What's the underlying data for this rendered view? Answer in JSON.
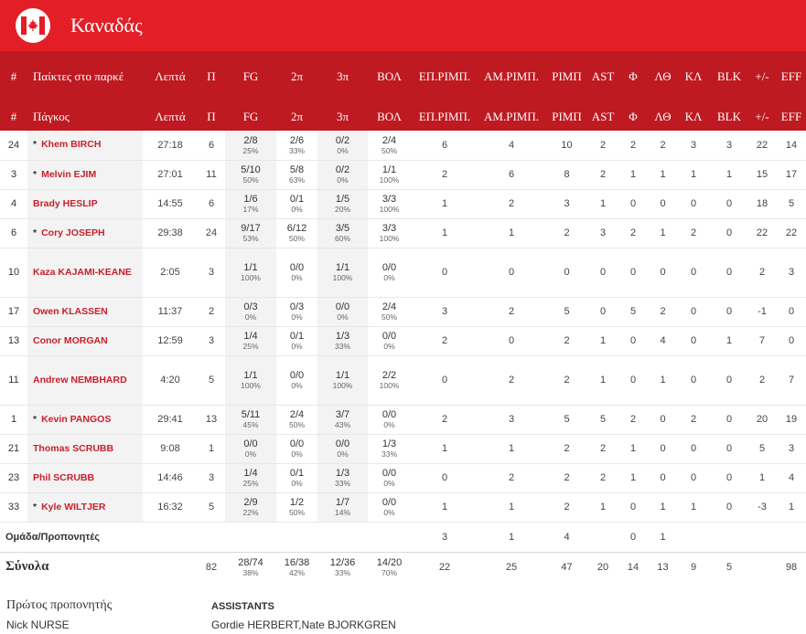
{
  "team": {
    "name": "Καναδάς",
    "accent": "#e41e26",
    "header_color": "#bf1a21",
    "logo_icon": "maple-leaf-icon"
  },
  "header_starters": {
    "num": "#",
    "player": "Παίκτες στο παρκέ",
    "min": "Λεπτά",
    "pts": "Π",
    "fg": "FG",
    "two": "2π",
    "three": "3π",
    "ft": "ΒΟΛ",
    "oreb": "ΕΠ.ΡΙΜΠ.",
    "dreb": "ΑΜ.ΡΙΜΠ.",
    "reb": "ΡΙΜΠ",
    "ast": "AST",
    "pf": "Φ",
    "to": "ΛΘ",
    "stl": "ΚΛ",
    "blk": "BLK",
    "pm": "+/-",
    "eff": "EFF"
  },
  "header_bench": {
    "num": "#",
    "player": "Πάγκος",
    "min": "Λεπτά",
    "pts": "Π",
    "fg": "FG",
    "two": "2π",
    "three": "3π",
    "ft": "ΒΟΛ",
    "oreb": "ΕΠ.ΡΙΜΠ.",
    "dreb": "ΑΜ.ΡΙΜΠ.",
    "reb": "ΡΙΜΠ",
    "ast": "AST",
    "pf": "Φ",
    "to": "ΛΘ",
    "stl": "ΚΛ",
    "blk": "BLK",
    "pm": "+/-",
    "eff": "EFF"
  },
  "players": [
    {
      "num": "24",
      "starter": true,
      "name": "Khem BIRCH",
      "min": "27:18",
      "pts": "6",
      "fg": "2/8",
      "fg_pct": "25%",
      "two": "2/6",
      "two_pct": "33%",
      "three": "0/2",
      "three_pct": "0%",
      "ft": "2/4",
      "ft_pct": "50%",
      "oreb": "6",
      "dreb": "4",
      "reb": "10",
      "ast": "2",
      "pf": "2",
      "to": "2",
      "stl": "3",
      "blk": "3",
      "pm": "22",
      "eff": "14"
    },
    {
      "num": "3",
      "starter": true,
      "name": "Melvin EJIM",
      "min": "27:01",
      "pts": "11",
      "fg": "5/10",
      "fg_pct": "50%",
      "two": "5/8",
      "two_pct": "63%",
      "three": "0/2",
      "three_pct": "0%",
      "ft": "1/1",
      "ft_pct": "100%",
      "oreb": "2",
      "dreb": "6",
      "reb": "8",
      "ast": "2",
      "pf": "1",
      "to": "1",
      "stl": "1",
      "blk": "1",
      "pm": "15",
      "eff": "17"
    },
    {
      "num": "4",
      "starter": false,
      "name": "Brady HESLIP",
      "min": "14:55",
      "pts": "6",
      "fg": "1/6",
      "fg_pct": "17%",
      "two": "0/1",
      "two_pct": "0%",
      "three": "1/5",
      "three_pct": "20%",
      "ft": "3/3",
      "ft_pct": "100%",
      "oreb": "1",
      "dreb": "2",
      "reb": "3",
      "ast": "1",
      "pf": "0",
      "to": "0",
      "stl": "0",
      "blk": "0",
      "pm": "18",
      "eff": "5"
    },
    {
      "num": "6",
      "starter": true,
      "name": "Cory JOSEPH",
      "min": "29:38",
      "pts": "24",
      "fg": "9/17",
      "fg_pct": "53%",
      "two": "6/12",
      "two_pct": "50%",
      "three": "3/5",
      "three_pct": "60%",
      "ft": "3/3",
      "ft_pct": "100%",
      "oreb": "1",
      "dreb": "1",
      "reb": "2",
      "ast": "3",
      "pf": "2",
      "to": "1",
      "stl": "2",
      "blk": "0",
      "pm": "22",
      "eff": "22"
    },
    {
      "num": "10",
      "starter": false,
      "name": "Kaza KAJAMI-KEANE",
      "min": "2:05",
      "pts": "3",
      "fg": "1/1",
      "fg_pct": "100%",
      "two": "0/0",
      "two_pct": "0%",
      "three": "1/1",
      "three_pct": "100%",
      "ft": "0/0",
      "ft_pct": "0%",
      "oreb": "0",
      "dreb": "0",
      "reb": "0",
      "ast": "0",
      "pf": "0",
      "to": "0",
      "stl": "0",
      "blk": "0",
      "pm": "2",
      "eff": "3"
    },
    {
      "num": "17",
      "starter": false,
      "name": "Owen KLASSEN",
      "min": "11:37",
      "pts": "2",
      "fg": "0/3",
      "fg_pct": "0%",
      "two": "0/3",
      "two_pct": "0%",
      "three": "0/0",
      "three_pct": "0%",
      "ft": "2/4",
      "ft_pct": "50%",
      "oreb": "3",
      "dreb": "2",
      "reb": "5",
      "ast": "0",
      "pf": "5",
      "to": "2",
      "stl": "0",
      "blk": "0",
      "pm": "-1",
      "eff": "0"
    },
    {
      "num": "13",
      "starter": false,
      "name": "Conor MORGAN",
      "min": "12:59",
      "pts": "3",
      "fg": "1/4",
      "fg_pct": "25%",
      "two": "0/1",
      "two_pct": "0%",
      "three": "1/3",
      "three_pct": "33%",
      "ft": "0/0",
      "ft_pct": "0%",
      "oreb": "2",
      "dreb": "0",
      "reb": "2",
      "ast": "1",
      "pf": "0",
      "to": "4",
      "stl": "0",
      "blk": "1",
      "pm": "7",
      "eff": "0"
    },
    {
      "num": "11",
      "starter": false,
      "name": "Andrew NEMBHARD",
      "min": "4:20",
      "pts": "5",
      "fg": "1/1",
      "fg_pct": "100%",
      "two": "0/0",
      "two_pct": "0%",
      "three": "1/1",
      "three_pct": "100%",
      "ft": "2/2",
      "ft_pct": "100%",
      "oreb": "0",
      "dreb": "2",
      "reb": "2",
      "ast": "1",
      "pf": "0",
      "to": "1",
      "stl": "0",
      "blk": "0",
      "pm": "2",
      "eff": "7"
    },
    {
      "num": "1",
      "starter": true,
      "name": "Kevin PANGOS",
      "min": "29:41",
      "pts": "13",
      "fg": "5/11",
      "fg_pct": "45%",
      "two": "2/4",
      "two_pct": "50%",
      "three": "3/7",
      "three_pct": "43%",
      "ft": "0/0",
      "ft_pct": "0%",
      "oreb": "2",
      "dreb": "3",
      "reb": "5",
      "ast": "5",
      "pf": "2",
      "to": "0",
      "stl": "2",
      "blk": "0",
      "pm": "20",
      "eff": "19"
    },
    {
      "num": "21",
      "starter": false,
      "name": "Thomas SCRUBB",
      "min": "9:08",
      "pts": "1",
      "fg": "0/0",
      "fg_pct": "0%",
      "two": "0/0",
      "two_pct": "0%",
      "three": "0/0",
      "three_pct": "0%",
      "ft": "1/3",
      "ft_pct": "33%",
      "oreb": "1",
      "dreb": "1",
      "reb": "2",
      "ast": "2",
      "pf": "1",
      "to": "0",
      "stl": "0",
      "blk": "0",
      "pm": "5",
      "eff": "3"
    },
    {
      "num": "23",
      "starter": false,
      "name": "Phil SCRUBB",
      "min": "14:46",
      "pts": "3",
      "fg": "1/4",
      "fg_pct": "25%",
      "two": "0/1",
      "two_pct": "0%",
      "three": "1/3",
      "three_pct": "33%",
      "ft": "0/0",
      "ft_pct": "0%",
      "oreb": "0",
      "dreb": "2",
      "reb": "2",
      "ast": "2",
      "pf": "1",
      "to": "0",
      "stl": "0",
      "blk": "0",
      "pm": "1",
      "eff": "4"
    },
    {
      "num": "33",
      "starter": true,
      "name": "Kyle WILTJER",
      "min": "16:32",
      "pts": "5",
      "fg": "2/9",
      "fg_pct": "22%",
      "two": "1/2",
      "two_pct": "50%",
      "three": "1/7",
      "three_pct": "14%",
      "ft": "0/0",
      "ft_pct": "0%",
      "oreb": "1",
      "dreb": "1",
      "reb": "2",
      "ast": "1",
      "pf": "0",
      "to": "1",
      "stl": "1",
      "blk": "0",
      "pm": "-3",
      "eff": "1"
    }
  ],
  "team_row": {
    "label": "Ομάδα/Προπονητές",
    "oreb": "3",
    "dreb": "1",
    "reb": "4",
    "pf": "0",
    "to": "1"
  },
  "totals": {
    "label": "Σύνολα",
    "pts": "82",
    "fg": "28/74",
    "fg_pct": "38%",
    "two": "16/38",
    "two_pct": "42%",
    "three": "12/36",
    "three_pct": "33%",
    "ft": "14/20",
    "ft_pct": "70%",
    "oreb": "22",
    "dreb": "25",
    "reb": "47",
    "ast": "20",
    "pf": "14",
    "to": "13",
    "stl": "9",
    "blk": "5",
    "eff": "98"
  },
  "coaching": {
    "head_label": "Πρώτος προπονητής",
    "head_name": "Nick NURSE",
    "assistants_label": "ASSISTANTS",
    "assistants_names": "Gordie HERBERT,Nate BJORKGREN"
  }
}
